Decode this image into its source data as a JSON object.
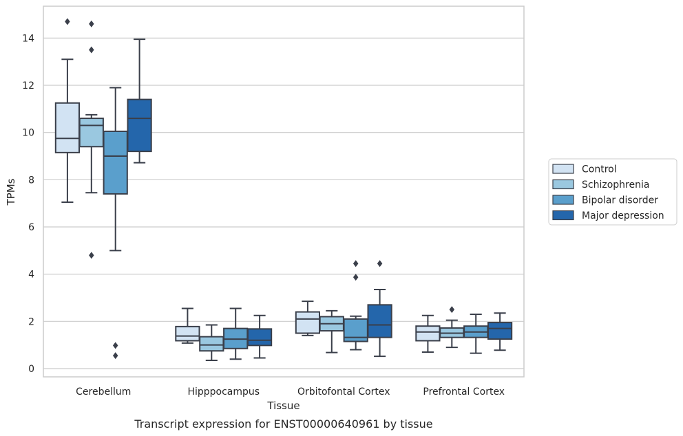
{
  "chart_data": {
    "type": "box",
    "title": "",
    "caption": "Transcript expression for ENST00000640961 by tissue",
    "xlabel": "Tissue",
    "ylabel": "TPMs",
    "ylim": [
      -0.35,
      15.35
    ],
    "yticks": [
      "0",
      "2",
      "4",
      "6",
      "8",
      "10",
      "12",
      "14"
    ],
    "grid": "horizontal",
    "legend_position": "outside-right",
    "categories": [
      "Cerebellum",
      "Hipppocampus",
      "Orbitofontal Cortex",
      "Prefrontal Cortex"
    ],
    "series": [
      {
        "name": "Control",
        "color": "#d2e3f3",
        "boxes": [
          {
            "whislo": 7.05,
            "q1": 9.15,
            "med": 9.75,
            "q3": 11.25,
            "whishi": 13.1,
            "fliers": [
              14.7
            ]
          },
          {
            "whislo": 1.08,
            "q1": 1.18,
            "med": 1.38,
            "q3": 1.78,
            "whishi": 2.55,
            "fliers": []
          },
          {
            "whislo": 1.4,
            "q1": 1.5,
            "med": 2.1,
            "q3": 2.4,
            "whishi": 2.85,
            "fliers": []
          },
          {
            "whislo": 0.7,
            "q1": 1.18,
            "med": 1.55,
            "q3": 1.8,
            "whishi": 2.25,
            "fliers": []
          }
        ]
      },
      {
        "name": "Schizophrenia",
        "color": "#9ac8e0",
        "boxes": [
          {
            "whislo": 7.45,
            "q1": 9.4,
            "med": 10.3,
            "q3": 10.6,
            "whishi": 10.75,
            "fliers": [
              13.5,
              14.6,
              4.8
            ]
          },
          {
            "whislo": 0.35,
            "q1": 0.75,
            "med": 1.0,
            "q3": 1.35,
            "whishi": 1.85,
            "fliers": []
          },
          {
            "whislo": 0.68,
            "q1": 1.6,
            "med": 1.9,
            "q3": 2.2,
            "whishi": 2.45,
            "fliers": []
          },
          {
            "whislo": 0.9,
            "q1": 1.32,
            "med": 1.5,
            "q3": 1.72,
            "whishi": 2.05,
            "fliers": [
              2.5
            ]
          }
        ]
      },
      {
        "name": "Bipolar disorder",
        "color": "#5a9fcc",
        "boxes": [
          {
            "whislo": 5.0,
            "q1": 7.4,
            "med": 9.0,
            "q3": 10.05,
            "whishi": 11.9,
            "fliers": [
              0.98,
              0.55
            ]
          },
          {
            "whislo": 0.4,
            "q1": 0.85,
            "med": 1.25,
            "q3": 1.7,
            "whishi": 2.55,
            "fliers": []
          },
          {
            "whislo": 0.8,
            "q1": 1.15,
            "med": 1.32,
            "q3": 2.1,
            "whishi": 2.22,
            "fliers": [
              4.45,
              3.87
            ]
          },
          {
            "whislo": 0.65,
            "q1": 1.32,
            "med": 1.55,
            "q3": 1.8,
            "whishi": 2.3,
            "fliers": []
          }
        ]
      },
      {
        "name": "Major depression",
        "color": "#2466ab",
        "boxes": [
          {
            "whislo": 8.72,
            "q1": 9.2,
            "med": 10.6,
            "q3": 11.4,
            "whishi": 13.95,
            "fliers": []
          },
          {
            "whislo": 0.45,
            "q1": 0.98,
            "med": 1.2,
            "q3": 1.68,
            "whishi": 2.25,
            "fliers": []
          },
          {
            "whislo": 0.52,
            "q1": 1.32,
            "med": 1.85,
            "q3": 2.7,
            "whishi": 3.35,
            "fliers": [
              4.45
            ]
          },
          {
            "whislo": 0.78,
            "q1": 1.25,
            "med": 1.7,
            "q3": 1.95,
            "whishi": 2.35,
            "fliers": []
          }
        ]
      }
    ]
  }
}
